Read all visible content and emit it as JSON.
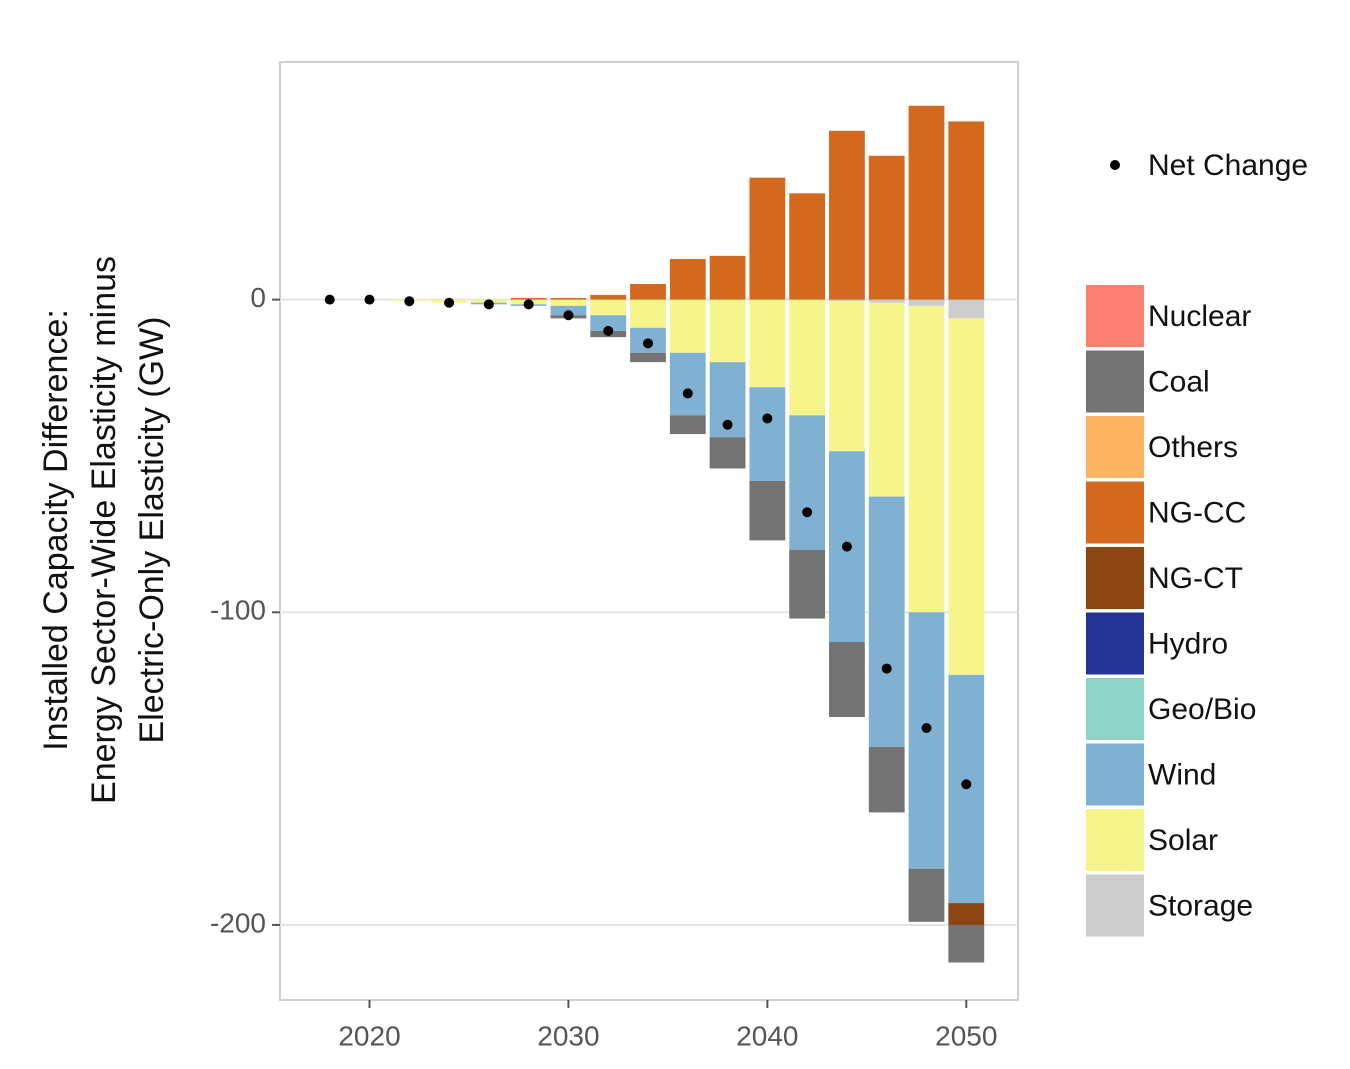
{
  "chart_data": {
    "type": "stacked-bar",
    "ylabel": [
      "Installed Capacity Difference:",
      "Energy Sector-Wide Elasticity minus",
      "Electric-Only Elasticity (GW)"
    ],
    "x": [
      2018,
      2020,
      2022,
      2024,
      2026,
      2028,
      2030,
      2032,
      2034,
      2036,
      2038,
      2040,
      2042,
      2044,
      2046,
      2048,
      2050
    ],
    "series": [
      {
        "name": "Nuclear",
        "color": "#fb8072",
        "values": [
          0,
          0,
          0,
          0,
          0,
          0,
          0,
          0,
          0,
          0,
          0,
          0,
          0,
          0,
          0,
          0,
          0
        ]
      },
      {
        "name": "Coal",
        "color": "#737373",
        "values": [
          0,
          0,
          0,
          0,
          0,
          0,
          -1,
          -2,
          -3,
          -6,
          -10,
          -19,
          -22,
          -24,
          -21,
          -17,
          -12
        ]
      },
      {
        "name": "Others",
        "color": "#fdb462",
        "values": [
          0,
          0,
          0,
          0,
          0,
          0,
          0,
          0,
          0,
          0,
          0,
          0,
          0,
          0,
          0,
          0,
          0
        ]
      },
      {
        "name": "NG-CC",
        "color": "#d2691e",
        "values": [
          0,
          0,
          0,
          0,
          0,
          0.5,
          0.5,
          1.5,
          5,
          13,
          14,
          39,
          34,
          54,
          46,
          62,
          57
        ]
      },
      {
        "name": "NG-CT",
        "color": "#8b4513",
        "values": [
          0,
          0,
          0,
          0,
          0,
          0,
          0,
          0,
          0,
          0,
          0,
          0,
          0,
          0,
          0,
          0,
          -7
        ]
      },
      {
        "name": "Hydro",
        "color": "#253494",
        "values": [
          0,
          0,
          0,
          0,
          0,
          0,
          0,
          0,
          0,
          0,
          0,
          0,
          0,
          0,
          0,
          0,
          0
        ]
      },
      {
        "name": "Geo/Bio",
        "color": "#8dd3c7",
        "values": [
          0,
          0,
          0,
          0,
          0,
          0,
          0,
          0,
          0,
          0,
          0,
          0,
          0,
          0,
          0,
          0,
          0
        ]
      },
      {
        "name": "Wind",
        "color": "#80b1d3",
        "values": [
          0,
          0,
          0,
          0,
          -0.5,
          -0.5,
          -3,
          -5,
          -8,
          -20,
          -24,
          -30,
          -43,
          -61,
          -80,
          -82,
          -73
        ]
      },
      {
        "name": "Solar",
        "color": "#f5f58c",
        "values": [
          0,
          0,
          -0.5,
          -1,
          -1,
          -1.5,
          -2,
          -5,
          -9,
          -17,
          -20,
          -28,
          -37,
          -48,
          -62,
          -98,
          -114
        ]
      },
      {
        "name": "Storage",
        "color": "#cccccc",
        "values": [
          0,
          0,
          0,
          0,
          0,
          0,
          0,
          0,
          0,
          0,
          0,
          0,
          0,
          -0.5,
          -1,
          -2,
          -6
        ]
      }
    ],
    "net": {
      "name": "Net Change",
      "color": "#000000",
      "values": [
        0,
        0,
        -0.5,
        -1,
        -1.5,
        -1.5,
        -5,
        -10,
        -14,
        -30,
        -40,
        -38,
        -68,
        -79,
        -118,
        -137,
        -155
      ]
    },
    "xlim": [
      2015.5,
      2052.6
    ],
    "ylim": [
      -224,
      76
    ],
    "xticks": [
      2020,
      2030,
      2040,
      2050
    ],
    "yticks": [
      -200,
      -100,
      0
    ],
    "grid": true
  }
}
